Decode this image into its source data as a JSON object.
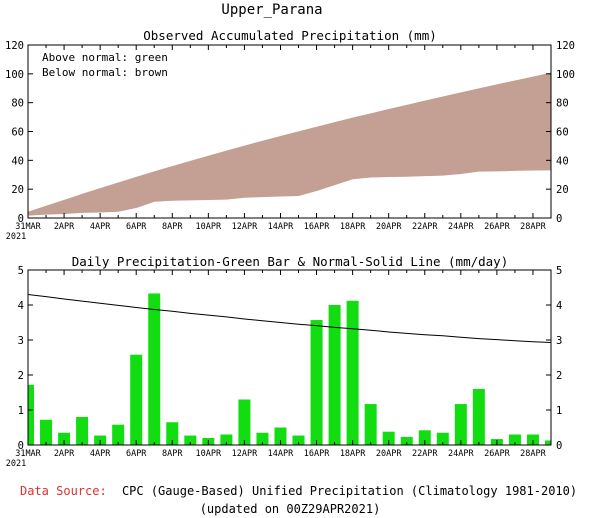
{
  "title": "Upper_Parana",
  "chart_data": [
    {
      "type": "area",
      "title": "Observed Accumulated Precipitation (mm)",
      "legend": [
        "Above normal: green",
        "Below normal: brown"
      ],
      "legend_position": "top-left",
      "x_labels": [
        "31MAR",
        "2APR",
        "4APR",
        "6APR",
        "8APR",
        "10APR",
        "12APR",
        "14APR",
        "16APR",
        "18APR",
        "20APR",
        "22APR",
        "24APR",
        "26APR",
        "28APR"
      ],
      "x_year": "2021",
      "ylim": [
        0,
        120
      ],
      "yticks": [
        0,
        20,
        40,
        60,
        80,
        100,
        120
      ],
      "colors": {
        "below_normal": "#c49f94",
        "above_normal": "#22dd22"
      },
      "series": [
        {
          "name": "Observed",
          "values": [
            2,
            2.7,
            3.1,
            3.9,
            4.2,
            4.7,
            7.3,
            11.6,
            12.3,
            12.6,
            12.8,
            13.1,
            14.4,
            14.8,
            15.3,
            15.6,
            19.1,
            23.1,
            27.2,
            28.4,
            28.8,
            29,
            29.4,
            29.7,
            30.9,
            32.5,
            32.7,
            33,
            33.3,
            33.4
          ]
        },
        {
          "name": "Normal",
          "values": [
            4.3,
            8.5,
            12.6,
            16.7,
            20.7,
            24.6,
            28.5,
            32.3,
            36,
            39.6,
            43.2,
            46.7,
            50.2,
            53.6,
            56.9,
            60.1,
            63.3,
            66.5,
            69.6,
            72.6,
            75.6,
            78.5,
            81.4,
            84.3,
            87.1,
            89.9,
            92.7,
            95.4,
            98.1,
            100.8
          ]
        }
      ]
    },
    {
      "type": "bar",
      "title": "Daily Precipitation-Green Bar & Normal-Solid Line (mm/day)",
      "x_labels": [
        "31MAR",
        "2APR",
        "4APR",
        "6APR",
        "8APR",
        "10APR",
        "12APR",
        "14APR",
        "16APR",
        "18APR",
        "20APR",
        "22APR",
        "24APR",
        "26APR",
        "28APR"
      ],
      "x_year": "2021",
      "ylim": [
        0,
        5
      ],
      "yticks": [
        0,
        1,
        2,
        3,
        4,
        5
      ],
      "colors": {
        "bar": "#11dd11",
        "line": "#000000"
      },
      "series": [
        {
          "name": "Daily precipitation",
          "values": [
            1.72,
            0.72,
            0.35,
            0.8,
            0.27,
            0.58,
            2.58,
            4.33,
            0.65,
            0.27,
            0.2,
            0.3,
            1.3,
            0.35,
            0.5,
            0.27,
            3.57,
            4.0,
            4.12,
            1.17,
            0.38,
            0.23,
            0.42,
            0.35,
            1.17,
            1.6,
            0.17,
            0.3,
            0.3,
            0.13
          ]
        },
        {
          "name": "Normal",
          "values": [
            4.3,
            4.24,
            4.17,
            4.11,
            4.05,
            3.99,
            3.93,
            3.87,
            3.82,
            3.76,
            3.71,
            3.66,
            3.6,
            3.55,
            3.5,
            3.45,
            3.41,
            3.36,
            3.32,
            3.28,
            3.23,
            3.19,
            3.15,
            3.12,
            3.08,
            3.04,
            3.01,
            2.98,
            2.95,
            2.93
          ]
        }
      ]
    }
  ],
  "footer": {
    "source_label": "Data Source:",
    "source_text": "CPC (Gauge-Based) Unified Precipitation (Climatology 1981-2010)",
    "updated": "(updated on 00Z29APR2021)"
  }
}
